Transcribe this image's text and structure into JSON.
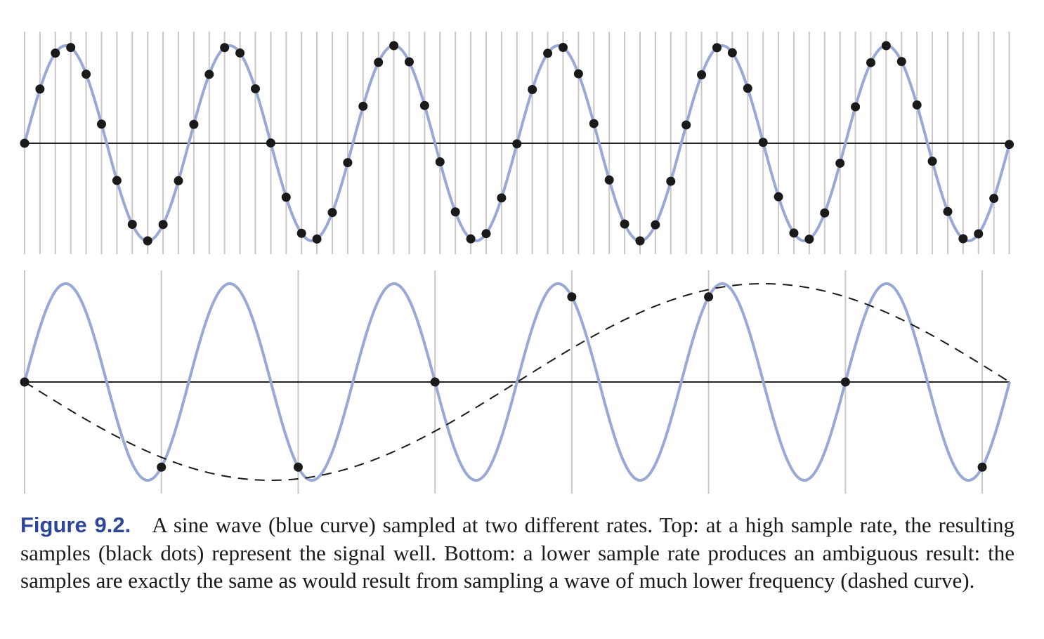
{
  "figure": {
    "label": "Figure 9.2.",
    "caption": "A sine wave (blue curve) sampled at two different rates. Top: at a high sample rate, the resulting samples (black dots) represent the signal well. Bottom: a lower sample rate produces an ambiguous result: the samples are exactly the same as would result from sampling a wave of much lower frequency (dashed curve)."
  },
  "colors": {
    "signal": "#9aa8d6",
    "samples": "#1a1a1a",
    "grid": "#c8c8c8",
    "axis": "#222222",
    "label": "#2f4597"
  },
  "chart_data": [
    {
      "type": "line",
      "panel": "top",
      "signal": {
        "name": "sine wave (blue curve)",
        "cycles": 6,
        "amplitude": 1
      },
      "sample_count": 65,
      "samples_per_cycle": 10.67,
      "x_range": [
        0,
        1
      ],
      "y_range": [
        -1,
        1
      ]
    },
    {
      "type": "line",
      "panel": "bottom",
      "signal": {
        "name": "sine wave (blue curve)",
        "cycles": 6,
        "amplitude": 1
      },
      "sample_count": 8,
      "samples_per_cycle": 1.2,
      "alias": {
        "name": "dashed curve",
        "cycles": -1,
        "amplitude": 1
      },
      "x_range": [
        0,
        1
      ],
      "y_range": [
        -1,
        1
      ]
    }
  ]
}
